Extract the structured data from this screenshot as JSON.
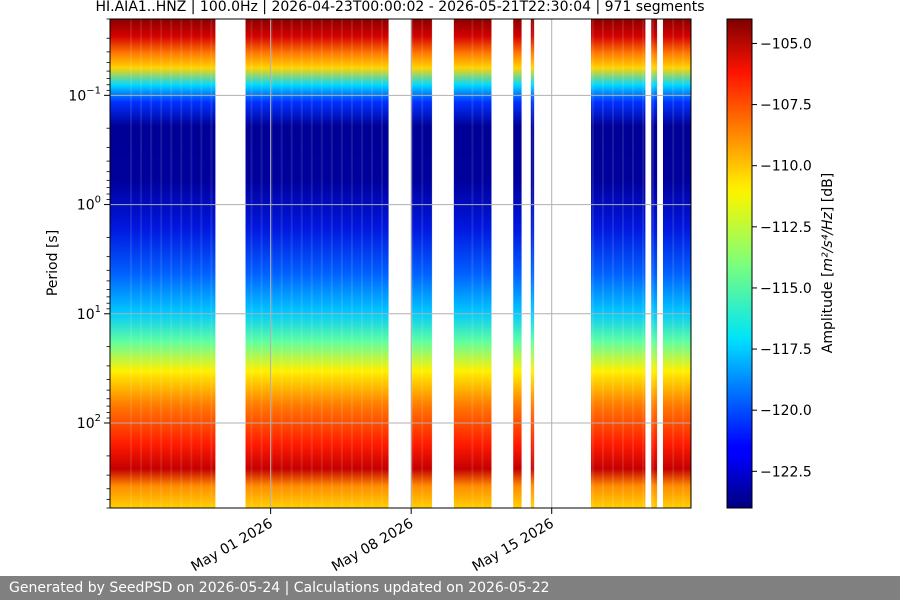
{
  "chart_data": {
    "type": "heatmap",
    "title": "HI.AIA1..HNZ | 100.0Hz | 2026-04-23T00:00:02 - 2026-05-21T22:30:04 | 971 segments",
    "xlabel": "",
    "ylabel": "Period [s]",
    "x_range": [
      "2026-04-23T00:00:02",
      "2026-05-21T22:30:04"
    ],
    "x_ticks": [
      {
        "date": "2026-05-01",
        "label": "May 01 2026"
      },
      {
        "date": "2026-05-08",
        "label": "May 08 2026"
      },
      {
        "date": "2026-05-15",
        "label": "May 15 2026"
      }
    ],
    "y_scale": "log",
    "y_inverted": true,
    "y_range_seconds": [
      0.02,
      600
    ],
    "y_ticks": [
      {
        "value": 0.1,
        "base": "10",
        "exp": "−1"
      },
      {
        "value": 1,
        "base": "10",
        "exp": "0"
      },
      {
        "value": 10,
        "base": "10",
        "exp": "1"
      },
      {
        "value": 100,
        "base": "10",
        "exp": "2"
      }
    ],
    "grid": true,
    "data_intervals": [
      [
        "2026-04-23T00:00:02",
        "2026-04-28T06:00:00"
      ],
      [
        "2026-04-29T18:00:00",
        "2026-05-06T21:00:00"
      ],
      [
        "2026-05-08T00:00:00",
        "2026-05-09T01:00:00"
      ],
      [
        "2026-05-10T03:00:00",
        "2026-05-12T00:00:00"
      ],
      [
        "2026-05-13T02:00:00",
        "2026-05-13T12:00:00"
      ],
      [
        "2026-05-13T23:00:00",
        "2026-05-14T03:00:00"
      ],
      [
        "2026-05-16T23:00:00",
        "2026-05-19T16:00:00"
      ],
      [
        "2026-05-19T23:00:00",
        "2026-05-20T06:00:00"
      ],
      [
        "2026-05-20T13:00:00",
        "2026-05-21T22:30:04"
      ]
    ],
    "colorbar": {
      "label_prefix": "Amplitude [",
      "label_math": "m²/s⁴/Hz",
      "label_suffix": "] [dB]",
      "range_db": [
        -124,
        -104
      ],
      "colormap": "jet",
      "ticks": [
        {
          "value": -105,
          "label": "−105.0"
        },
        {
          "value": -107.5,
          "label": "−107.5"
        },
        {
          "value": -110,
          "label": "−110.0"
        },
        {
          "value": -112.5,
          "label": "−112.5"
        },
        {
          "value": -115,
          "label": "−115.0"
        },
        {
          "value": -117.5,
          "label": "−117.5"
        },
        {
          "value": -120,
          "label": "−120.0"
        },
        {
          "value": -122.5,
          "label": "−122.5"
        }
      ]
    }
  },
  "footer": {
    "text": "Generated by SeedPSD on 2026-05-24 | Calculations updated on 2026-05-22"
  }
}
